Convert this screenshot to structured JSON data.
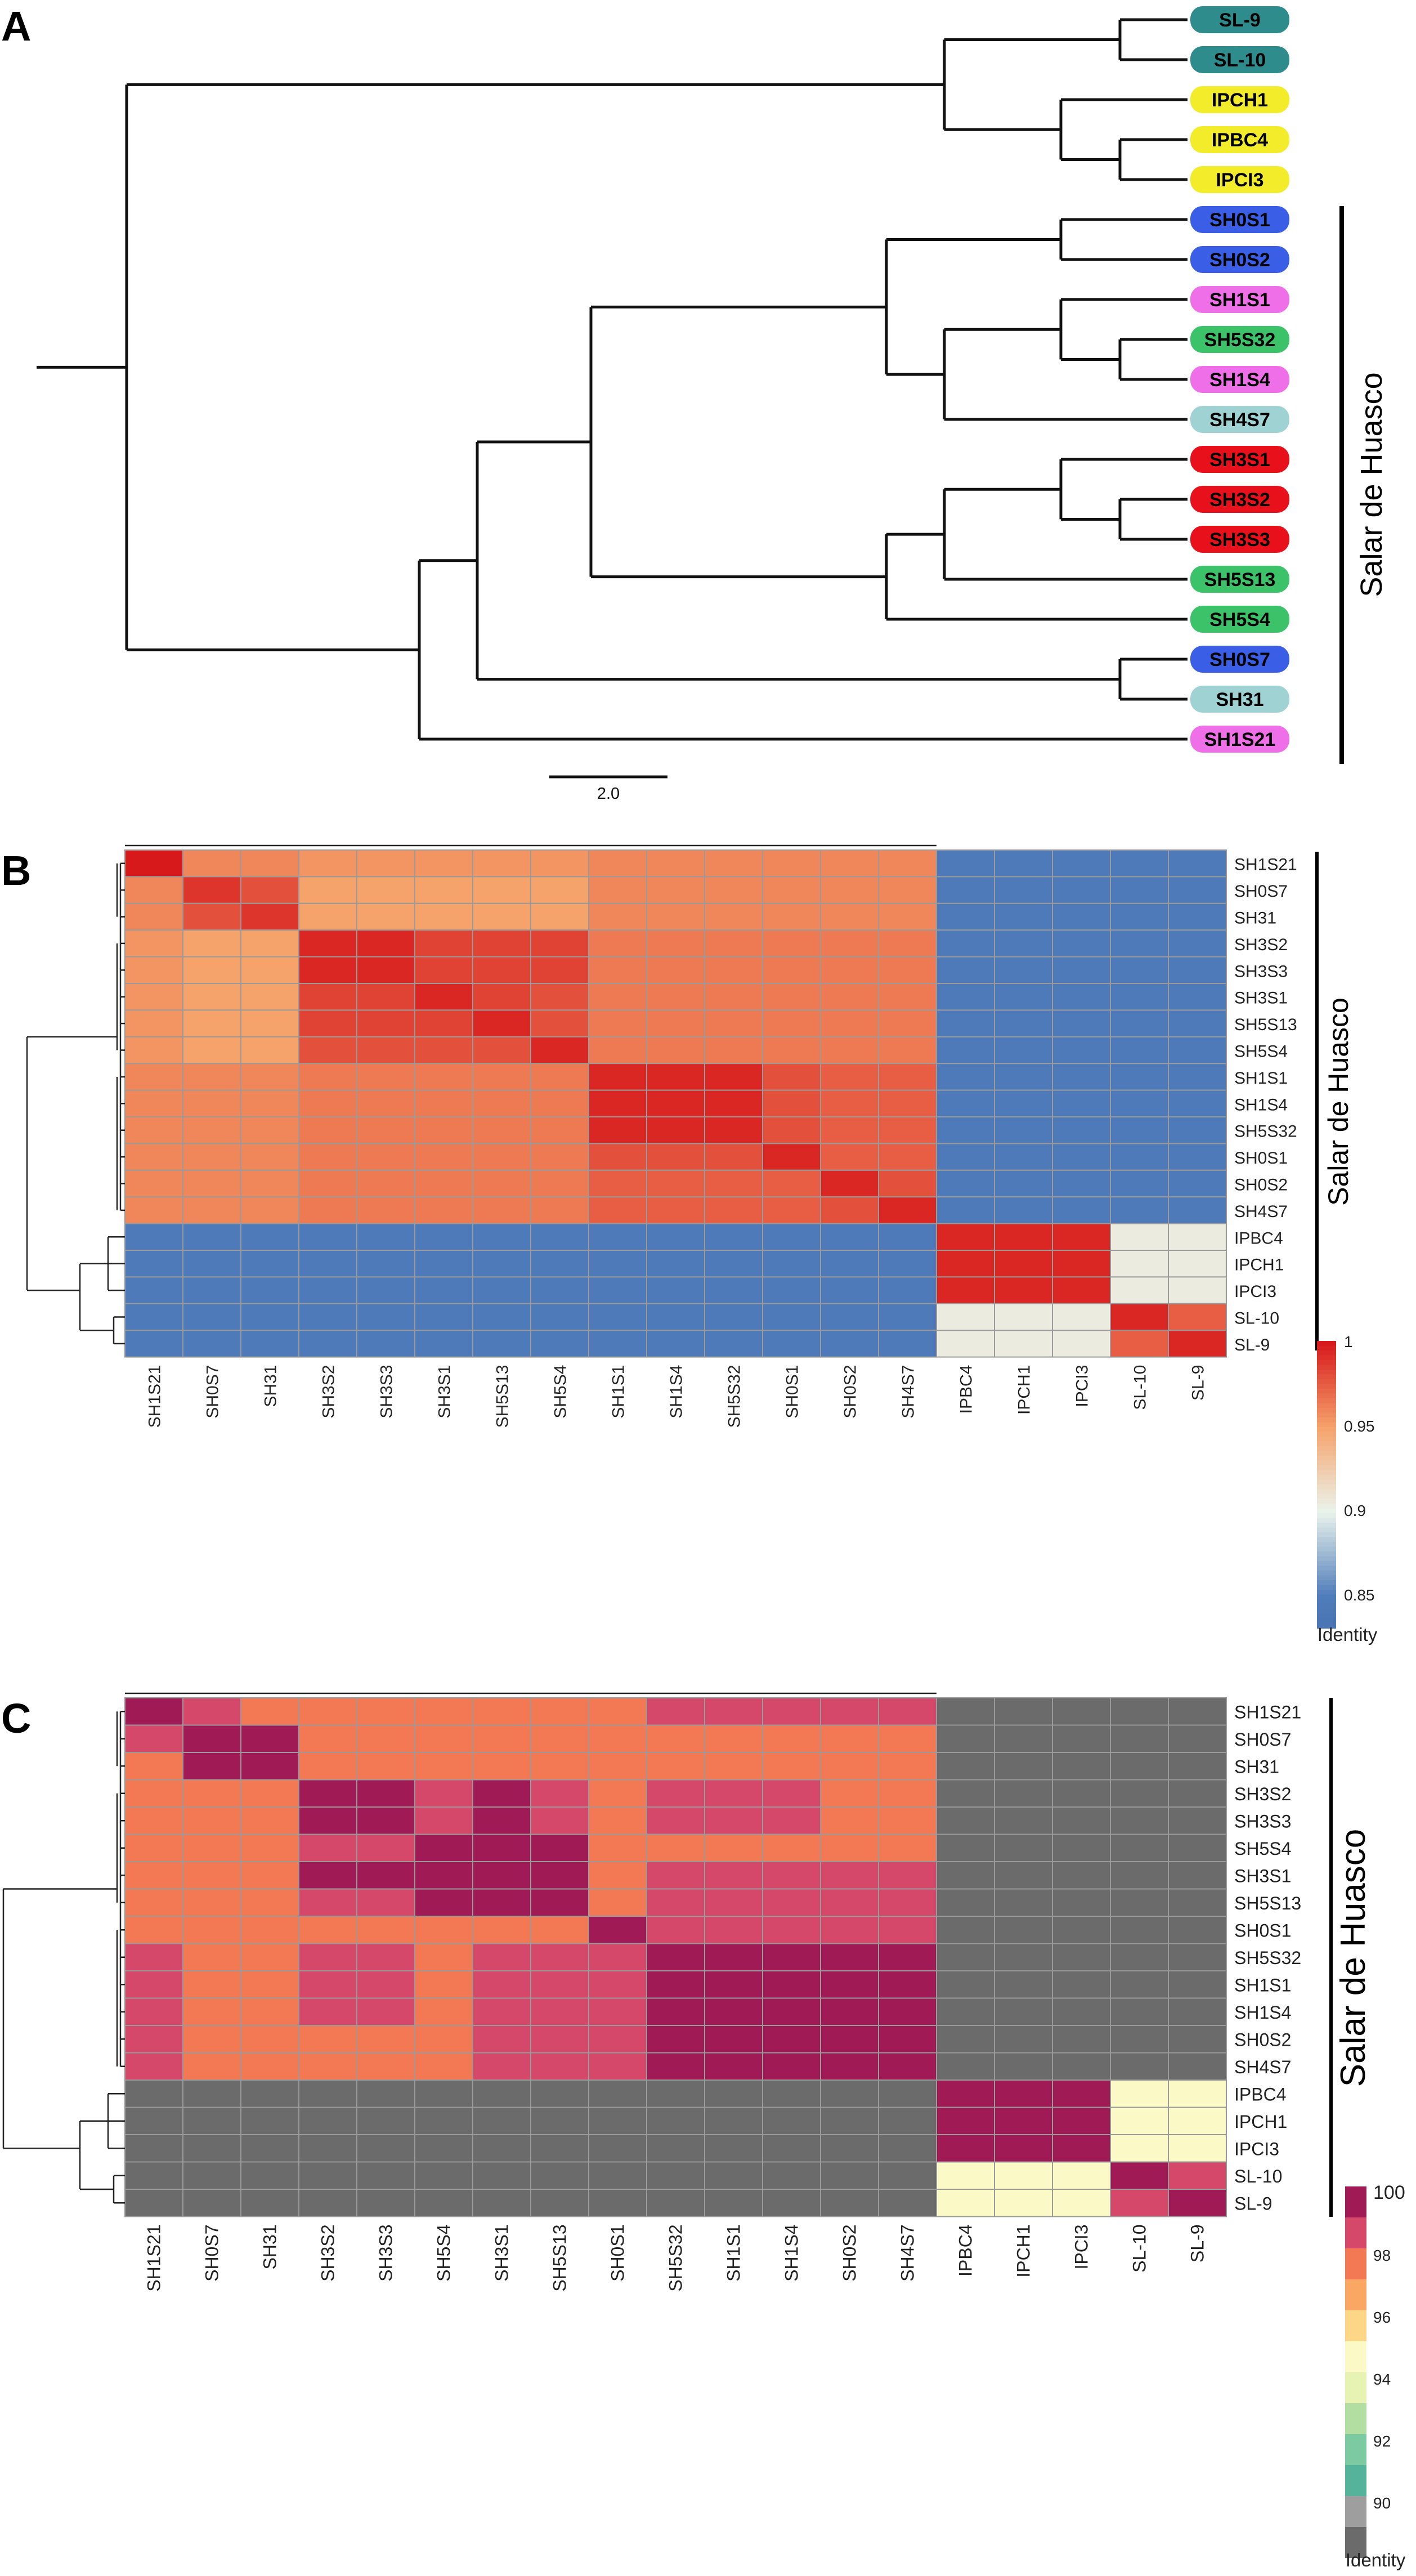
{
  "panels": {
    "a_label": "A",
    "b_label": "B",
    "c_label": "C"
  },
  "tree": {
    "scale_label": "2.0",
    "group_label": "Salar de Huasco",
    "tips": [
      {
        "name": "SL-9",
        "color": "#2f8c8c"
      },
      {
        "name": "SL-10",
        "color": "#2f8c8c"
      },
      {
        "name": "IPCH1",
        "color": "#f2ec2a"
      },
      {
        "name": "IPBC4",
        "color": "#f2ec2a"
      },
      {
        "name": "IPCI3",
        "color": "#f2ec2a"
      },
      {
        "name": "SH0S1",
        "color": "#3a5fe6"
      },
      {
        "name": "SH0S2",
        "color": "#3a5fe6"
      },
      {
        "name": "SH1S1",
        "color": "#ee6fe8"
      },
      {
        "name": "SH5S32",
        "color": "#3cc36a"
      },
      {
        "name": "SH1S4",
        "color": "#ee6fe8"
      },
      {
        "name": "SH4S7",
        "color": "#9fd3d3"
      },
      {
        "name": "SH3S1",
        "color": "#e8111b"
      },
      {
        "name": "SH3S2",
        "color": "#e8111b"
      },
      {
        "name": "SH3S3",
        "color": "#e8111b"
      },
      {
        "name": "SH5S13",
        "color": "#3cc36a"
      },
      {
        "name": "SH5S4",
        "color": "#3cc36a"
      },
      {
        "name": "SH0S7",
        "color": "#3a5fe6"
      },
      {
        "name": "SH31",
        "color": "#9fd3d3"
      },
      {
        "name": "SH1S21",
        "color": "#ee6fe8"
      }
    ]
  },
  "chart_data": [
    {
      "type": "heatmap",
      "title": "Identity heatmap (panel B)",
      "group_label": "Salar de Huasco",
      "legend_title": "Identity",
      "legend_ticks": [
        "1",
        "0.95",
        "0.9",
        "0.85"
      ],
      "legend_range": [
        0.83,
        1.0
      ],
      "columns": [
        "SH1S21",
        "SH0S7",
        "SH31",
        "SH3S2",
        "SH3S3",
        "SH3S1",
        "SH5S13",
        "SH5S4",
        "SH1S1",
        "SH1S4",
        "SH5S32",
        "SH0S1",
        "SH0S2",
        "SH4S7",
        "IPBC4",
        "IPCH1",
        "IPCI3",
        "SL-10",
        "SL-9"
      ],
      "rows": [
        "SH1S21",
        "SH0S7",
        "SH31",
        "SH3S2",
        "SH3S3",
        "SH3S1",
        "SH5S13",
        "SH5S4",
        "SH1S1",
        "SH1S4",
        "SH5S32",
        "SH0S1",
        "SH0S2",
        "SH4S7",
        "IPBC4",
        "IPCH1",
        "IPCI3",
        "SL-10",
        "SL-9"
      ],
      "values": [
        [
          1.0,
          0.96,
          0.96,
          0.955,
          0.955,
          0.955,
          0.955,
          0.955,
          0.96,
          0.96,
          0.96,
          0.96,
          0.96,
          0.96,
          0.845,
          0.845,
          0.845,
          0.845,
          0.845
        ],
        [
          0.96,
          0.99,
          0.98,
          0.95,
          0.95,
          0.95,
          0.95,
          0.95,
          0.96,
          0.96,
          0.96,
          0.96,
          0.96,
          0.96,
          0.845,
          0.845,
          0.845,
          0.845,
          0.845
        ],
        [
          0.96,
          0.98,
          0.99,
          0.95,
          0.95,
          0.95,
          0.95,
          0.95,
          0.96,
          0.96,
          0.96,
          0.96,
          0.96,
          0.96,
          0.845,
          0.845,
          0.845,
          0.845,
          0.845
        ],
        [
          0.955,
          0.95,
          0.95,
          0.995,
          0.995,
          0.985,
          0.985,
          0.985,
          0.965,
          0.965,
          0.965,
          0.965,
          0.965,
          0.965,
          0.845,
          0.845,
          0.845,
          0.845,
          0.845
        ],
        [
          0.955,
          0.95,
          0.95,
          0.995,
          0.995,
          0.985,
          0.985,
          0.985,
          0.965,
          0.965,
          0.965,
          0.965,
          0.965,
          0.965,
          0.845,
          0.845,
          0.845,
          0.845,
          0.845
        ],
        [
          0.955,
          0.95,
          0.95,
          0.985,
          0.985,
          0.995,
          0.985,
          0.98,
          0.965,
          0.965,
          0.965,
          0.965,
          0.965,
          0.965,
          0.845,
          0.845,
          0.845,
          0.845,
          0.845
        ],
        [
          0.955,
          0.95,
          0.95,
          0.985,
          0.985,
          0.985,
          0.995,
          0.98,
          0.965,
          0.965,
          0.965,
          0.965,
          0.965,
          0.965,
          0.845,
          0.845,
          0.845,
          0.845,
          0.845
        ],
        [
          0.955,
          0.95,
          0.95,
          0.98,
          0.98,
          0.98,
          0.98,
          0.995,
          0.965,
          0.965,
          0.965,
          0.965,
          0.965,
          0.965,
          0.845,
          0.845,
          0.845,
          0.845,
          0.845
        ],
        [
          0.96,
          0.96,
          0.96,
          0.965,
          0.965,
          0.965,
          0.965,
          0.965,
          0.995,
          0.995,
          0.995,
          0.98,
          0.975,
          0.975,
          0.845,
          0.845,
          0.845,
          0.845,
          0.845
        ],
        [
          0.96,
          0.96,
          0.96,
          0.965,
          0.965,
          0.965,
          0.965,
          0.965,
          0.995,
          0.995,
          0.995,
          0.98,
          0.975,
          0.975,
          0.845,
          0.845,
          0.845,
          0.845,
          0.845
        ],
        [
          0.96,
          0.96,
          0.96,
          0.965,
          0.965,
          0.965,
          0.965,
          0.965,
          0.995,
          0.995,
          0.995,
          0.98,
          0.975,
          0.975,
          0.845,
          0.845,
          0.845,
          0.845,
          0.845
        ],
        [
          0.96,
          0.96,
          0.96,
          0.965,
          0.965,
          0.965,
          0.965,
          0.965,
          0.98,
          0.98,
          0.98,
          0.995,
          0.975,
          0.975,
          0.845,
          0.845,
          0.845,
          0.845,
          0.845
        ],
        [
          0.96,
          0.96,
          0.96,
          0.965,
          0.965,
          0.965,
          0.965,
          0.965,
          0.975,
          0.975,
          0.975,
          0.975,
          0.995,
          0.98,
          0.845,
          0.845,
          0.845,
          0.845,
          0.845
        ],
        [
          0.96,
          0.96,
          0.96,
          0.965,
          0.965,
          0.965,
          0.965,
          0.965,
          0.975,
          0.975,
          0.975,
          0.975,
          0.98,
          0.995,
          0.845,
          0.845,
          0.845,
          0.845,
          0.845
        ],
        [
          0.845,
          0.845,
          0.845,
          0.845,
          0.845,
          0.845,
          0.845,
          0.845,
          0.845,
          0.845,
          0.845,
          0.845,
          0.845,
          0.845,
          0.995,
          0.995,
          0.995,
          0.905,
          0.905
        ],
        [
          0.845,
          0.845,
          0.845,
          0.845,
          0.845,
          0.845,
          0.845,
          0.845,
          0.845,
          0.845,
          0.845,
          0.845,
          0.845,
          0.845,
          0.995,
          0.995,
          0.995,
          0.905,
          0.905
        ],
        [
          0.845,
          0.845,
          0.845,
          0.845,
          0.845,
          0.845,
          0.845,
          0.845,
          0.845,
          0.845,
          0.845,
          0.845,
          0.845,
          0.845,
          0.995,
          0.995,
          0.995,
          0.905,
          0.905
        ],
        [
          0.845,
          0.845,
          0.845,
          0.845,
          0.845,
          0.845,
          0.845,
          0.845,
          0.845,
          0.845,
          0.845,
          0.845,
          0.845,
          0.845,
          0.905,
          0.905,
          0.905,
          0.995,
          0.975
        ],
        [
          0.845,
          0.845,
          0.845,
          0.845,
          0.845,
          0.845,
          0.845,
          0.845,
          0.845,
          0.845,
          0.845,
          0.845,
          0.845,
          0.845,
          0.905,
          0.905,
          0.905,
          0.975,
          0.995
        ]
      ]
    },
    {
      "type": "heatmap",
      "title": "Identity heatmap (panel C)",
      "group_label": "Salar de Huasco",
      "legend_title": "Identity",
      "legend_ticks": [
        "100",
        "98",
        "96",
        "94",
        "92",
        "90"
      ],
      "legend_range": [
        88,
        100
      ],
      "below_range_color": "#6b6b6b",
      "columns": [
        "SH1S21",
        "SH0S7",
        "SH31",
        "SH3S2",
        "SH3S3",
        "SH5S4",
        "SH3S1",
        "SH5S13",
        "SH0S1",
        "SH5S32",
        "SH1S1",
        "SH1S4",
        "SH0S2",
        "SH4S7",
        "IPBC4",
        "IPCH1",
        "IPCI3",
        "SL-10",
        "SL-9"
      ],
      "rows": [
        "SH1S21",
        "SH0S7",
        "SH31",
        "SH3S2",
        "SH3S3",
        "SH5S4",
        "SH3S1",
        "SH5S13",
        "SH0S1",
        "SH5S32",
        "SH1S1",
        "SH1S4",
        "SH0S2",
        "SH4S7",
        "IPBC4",
        "IPCH1",
        "IPCI3",
        "SL-10",
        "SL-9"
      ],
      "values": [
        [
          100,
          98,
          97,
          97,
          97,
          97,
          97,
          97,
          97,
          98,
          98,
          98,
          98,
          98,
          0,
          0,
          0,
          0,
          0
        ],
        [
          98,
          100,
          100,
          97,
          97,
          97,
          97,
          97,
          97,
          97,
          97,
          97,
          97,
          97,
          0,
          0,
          0,
          0,
          0
        ],
        [
          97,
          100,
          100,
          97,
          97,
          97,
          97,
          97,
          97,
          97,
          97,
          97,
          97,
          97,
          0,
          0,
          0,
          0,
          0
        ],
        [
          97,
          97,
          97,
          100,
          100,
          98,
          100,
          98,
          97,
          98,
          98,
          98,
          97,
          97,
          0,
          0,
          0,
          0,
          0
        ],
        [
          97,
          97,
          97,
          100,
          100,
          98,
          100,
          98,
          97,
          98,
          98,
          98,
          97,
          97,
          0,
          0,
          0,
          0,
          0
        ],
        [
          97,
          97,
          97,
          98,
          98,
          100,
          100,
          100,
          97,
          97,
          97,
          97,
          97,
          97,
          0,
          0,
          0,
          0,
          0
        ],
        [
          97,
          97,
          97,
          100,
          100,
          100,
          100,
          100,
          97,
          98,
          98,
          98,
          98,
          98,
          0,
          0,
          0,
          0,
          0
        ],
        [
          97,
          97,
          97,
          98,
          98,
          100,
          100,
          100,
          97,
          98,
          98,
          98,
          98,
          98,
          0,
          0,
          0,
          0,
          0
        ],
        [
          97,
          97,
          97,
          97,
          97,
          97,
          97,
          97,
          100,
          98,
          98,
          98,
          98,
          98,
          0,
          0,
          0,
          0,
          0
        ],
        [
          98,
          97,
          97,
          98,
          98,
          97,
          98,
          98,
          98,
          100,
          100,
          100,
          100,
          100,
          0,
          0,
          0,
          0,
          0
        ],
        [
          98,
          97,
          97,
          98,
          98,
          97,
          98,
          98,
          98,
          100,
          100,
          100,
          100,
          100,
          0,
          0,
          0,
          0,
          0
        ],
        [
          98,
          97,
          97,
          98,
          98,
          97,
          98,
          98,
          98,
          100,
          100,
          100,
          100,
          100,
          0,
          0,
          0,
          0,
          0
        ],
        [
          98,
          97,
          97,
          97,
          97,
          97,
          98,
          98,
          98,
          100,
          100,
          100,
          100,
          100,
          0,
          0,
          0,
          0,
          0
        ],
        [
          98,
          97,
          97,
          97,
          97,
          97,
          98,
          98,
          98,
          100,
          100,
          100,
          100,
          100,
          0,
          0,
          0,
          0,
          0
        ],
        [
          0,
          0,
          0,
          0,
          0,
          0,
          0,
          0,
          0,
          0,
          0,
          0,
          0,
          0,
          100,
          100,
          100,
          94,
          94
        ],
        [
          0,
          0,
          0,
          0,
          0,
          0,
          0,
          0,
          0,
          0,
          0,
          0,
          0,
          0,
          100,
          100,
          100,
          94,
          94
        ],
        [
          0,
          0,
          0,
          0,
          0,
          0,
          0,
          0,
          0,
          0,
          0,
          0,
          0,
          0,
          100,
          100,
          100,
          94,
          94
        ],
        [
          0,
          0,
          0,
          0,
          0,
          0,
          0,
          0,
          0,
          0,
          0,
          0,
          0,
          0,
          94,
          94,
          94,
          100,
          98
        ],
        [
          0,
          0,
          0,
          0,
          0,
          0,
          0,
          0,
          0,
          0,
          0,
          0,
          0,
          0,
          94,
          94,
          94,
          98,
          100
        ]
      ]
    }
  ]
}
